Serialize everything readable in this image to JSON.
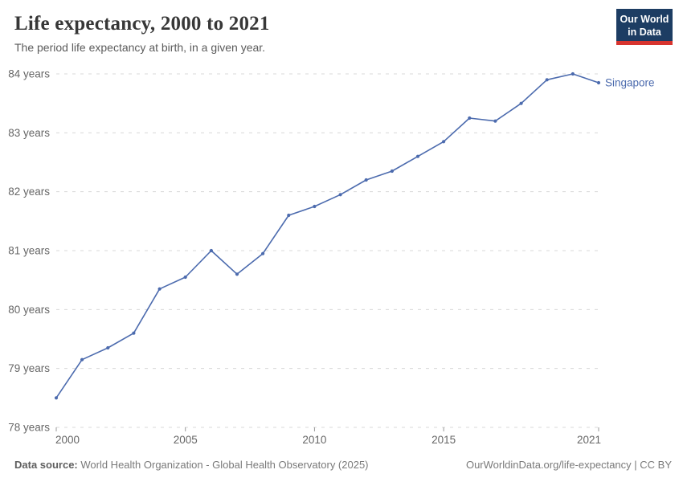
{
  "header": {
    "title": "Life expectancy, 2000 to 2021",
    "subtitle": "The period life expectancy at birth, in a given year.",
    "logo": {
      "line1": "Our World",
      "line2": "in Data",
      "bg_color": "#1d3d63",
      "accent_color": "#d7342e"
    }
  },
  "chart_data": {
    "type": "line",
    "title": "Life expectancy, 2000 to 2021",
    "xlabel": "",
    "ylabel": "",
    "x": [
      2000,
      2001,
      2002,
      2003,
      2004,
      2005,
      2006,
      2007,
      2008,
      2009,
      2010,
      2011,
      2012,
      2013,
      2014,
      2015,
      2016,
      2017,
      2018,
      2019,
      2020,
      2021
    ],
    "series": [
      {
        "name": "Singapore",
        "color": "#4c6bae",
        "values": [
          78.5,
          79.15,
          79.35,
          79.6,
          80.35,
          80.55,
          81.0,
          80.6,
          80.95,
          81.6,
          81.75,
          81.95,
          82.2,
          82.35,
          82.6,
          82.85,
          83.25,
          83.2,
          83.5,
          83.9,
          84.0,
          83.85
        ]
      }
    ],
    "xlim": [
      2000,
      2021
    ],
    "ylim": [
      78,
      84
    ],
    "yticks": [
      78,
      79,
      80,
      81,
      82,
      83,
      84
    ],
    "ytick_suffix": " years",
    "xticks": [
      2000,
      2005,
      2010,
      2015,
      2021
    ],
    "grid": "horizontal-dashed",
    "grid_color": "#d8d8d8",
    "axis_text_color": "#666666",
    "legend_position": "end-of-line-label"
  },
  "footer": {
    "datasource_label": "Data source:",
    "datasource_text": " World Health Organization - Global Health Observatory (2025)",
    "link": "OurWorldinData.org/life-expectancy",
    "license": " | CC BY"
  }
}
